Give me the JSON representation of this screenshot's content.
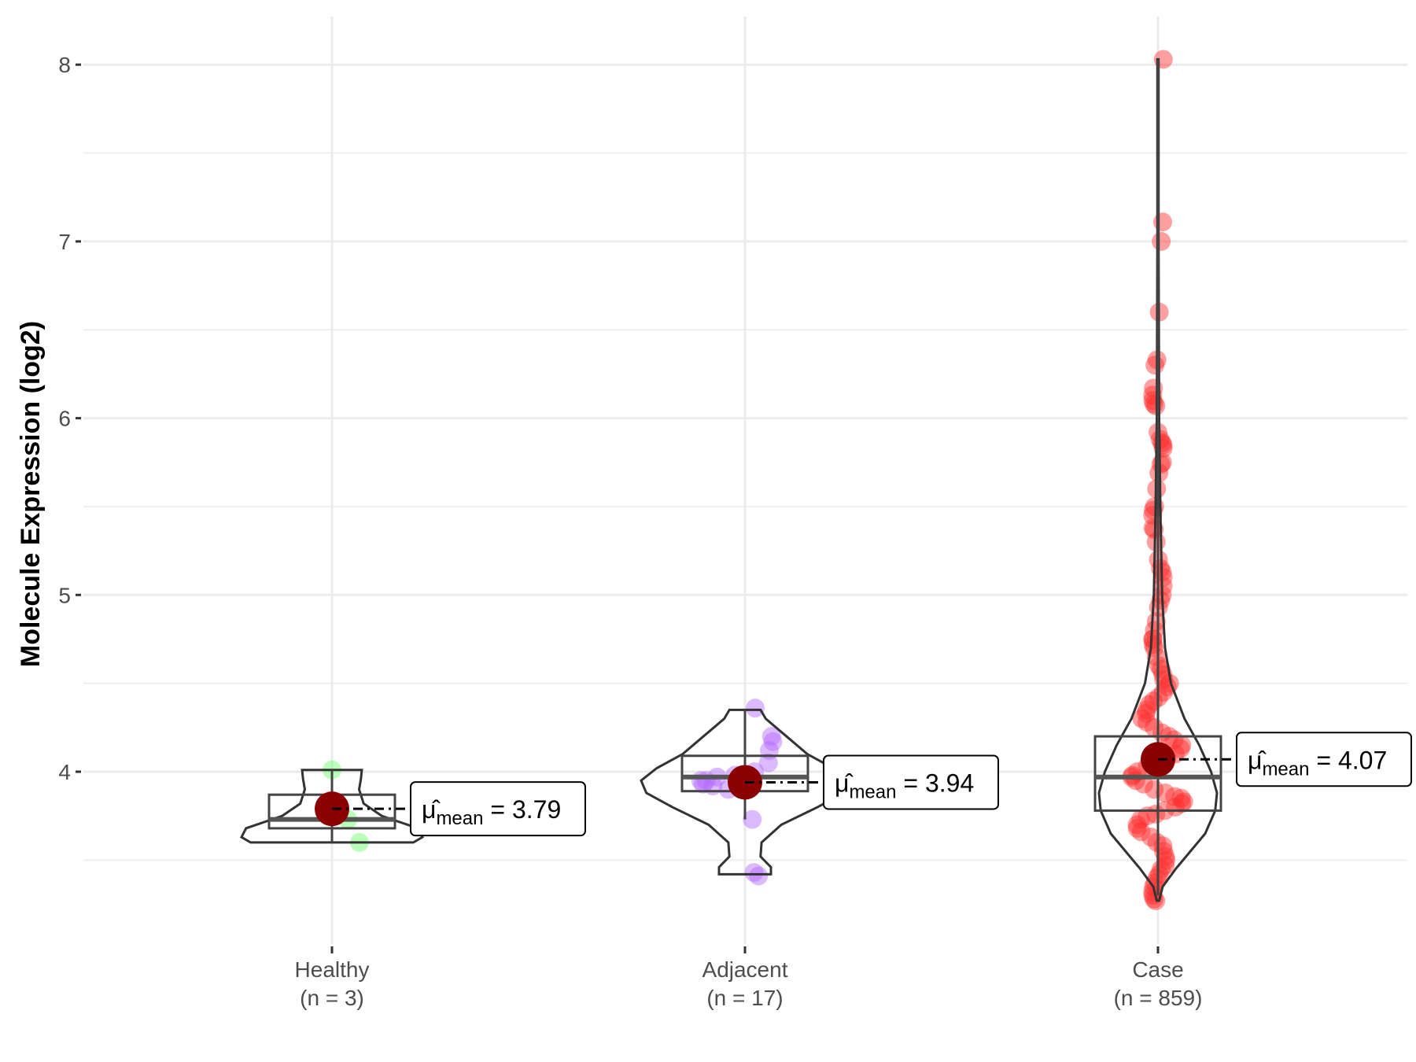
{
  "chart_data": {
    "type": "violin",
    "title": "",
    "xlabel": "",
    "ylabel": "Molecule Expression (log2)",
    "ylim": [
      3.05,
      8.27
    ],
    "yticks": [
      4,
      5,
      6,
      7,
      8
    ],
    "grid": true,
    "categories": [
      {
        "name": "Healthy",
        "n_label": "(n = 3)",
        "color": "#66ff66",
        "mean": 3.79,
        "mean_label": "3.79",
        "box": {
          "q1": 3.68,
          "median": 3.73,
          "q3": 3.87,
          "lo": 3.6,
          "hi": 4.01
        },
        "violin": [
          [
            3.6,
            0.9
          ],
          [
            3.63,
            1.0
          ],
          [
            3.68,
            0.95
          ],
          [
            3.75,
            0.55
          ],
          [
            3.82,
            0.35
          ],
          [
            3.9,
            0.3
          ],
          [
            3.96,
            0.32
          ],
          [
            4.01,
            0.33
          ]
        ],
        "points": [
          4.01,
          3.73,
          3.6
        ]
      },
      {
        "name": "Adjacent",
        "n_label": "(n = 17)",
        "color": "#b266ff",
        "mean": 3.94,
        "mean_label": "3.94",
        "box": {
          "q1": 3.89,
          "median": 3.97,
          "q3": 4.09,
          "lo": 3.73,
          "hi": 4.35
        },
        "violin": [
          [
            3.42,
            0.25
          ],
          [
            3.46,
            0.25
          ],
          [
            3.52,
            0.15
          ],
          [
            3.6,
            0.16
          ],
          [
            3.7,
            0.35
          ],
          [
            3.8,
            0.7
          ],
          [
            3.88,
            0.95
          ],
          [
            3.95,
            1.0
          ],
          [
            4.02,
            0.85
          ],
          [
            4.1,
            0.6
          ],
          [
            4.2,
            0.4
          ],
          [
            4.3,
            0.2
          ],
          [
            4.35,
            0.15
          ]
        ],
        "points": [
          4.36,
          4.2,
          4.17,
          4.12,
          4.05,
          4.0,
          3.98,
          3.97,
          3.95,
          3.95,
          3.93,
          3.92,
          3.9,
          3.9,
          3.73,
          3.43,
          3.41
        ]
      },
      {
        "name": "Case",
        "n_label": "(n = 859)",
        "color": "#ff2a2a",
        "mean": 4.07,
        "mean_label": "4.07",
        "box": {
          "q1": 3.78,
          "median": 3.97,
          "q3": 4.2,
          "lo": 3.3,
          "hi": 8.03
        },
        "violin": [
          [
            3.27,
            0.02
          ],
          [
            3.35,
            0.08
          ],
          [
            3.45,
            0.3
          ],
          [
            3.55,
            0.55
          ],
          [
            3.65,
            0.8
          ],
          [
            3.78,
            0.97
          ],
          [
            3.88,
            1.0
          ],
          [
            4.0,
            0.9
          ],
          [
            4.15,
            0.7
          ],
          [
            4.3,
            0.45
          ],
          [
            4.5,
            0.22
          ],
          [
            4.7,
            0.12
          ],
          [
            5.0,
            0.07
          ],
          [
            5.5,
            0.04
          ],
          [
            6.0,
            0.02
          ],
          [
            7.0,
            0.01
          ],
          [
            8.03,
            0.01
          ]
        ],
        "points": [
          8.03,
          7.11,
          7.0,
          6.6,
          6.33,
          6.3,
          6.17,
          6.13,
          6.1,
          6.08,
          6.07,
          5.92,
          5.88,
          5.86,
          5.85,
          5.83,
          5.75,
          5.74,
          5.69,
          5.6,
          5.5,
          5.48,
          5.45,
          5.38,
          5.37,
          5.3,
          5.2,
          5.15,
          5.13,
          5.1,
          5.05,
          5.0,
          4.97,
          4.93,
          4.85,
          4.8,
          4.75,
          4.75,
          4.72,
          4.7,
          4.65,
          4.6,
          4.58,
          4.55,
          4.52,
          4.5,
          4.48,
          4.45,
          4.42,
          4.4,
          4.38,
          4.35,
          4.33,
          4.3,
          4.28,
          4.25,
          4.22,
          4.2,
          4.18,
          4.15,
          4.13,
          4.1,
          4.08,
          4.05,
          4.03,
          4.0,
          3.98,
          3.97,
          3.95,
          3.93,
          3.9,
          3.88,
          3.86,
          3.85,
          3.83,
          3.82,
          3.8,
          3.78,
          3.76,
          3.75,
          3.73,
          3.7,
          3.68,
          3.66,
          3.63,
          3.6,
          3.58,
          3.55,
          3.52,
          3.5,
          3.47,
          3.45,
          3.42,
          3.4,
          3.37,
          3.35,
          3.32,
          3.3,
          3.28,
          3.27
        ]
      }
    ]
  }
}
